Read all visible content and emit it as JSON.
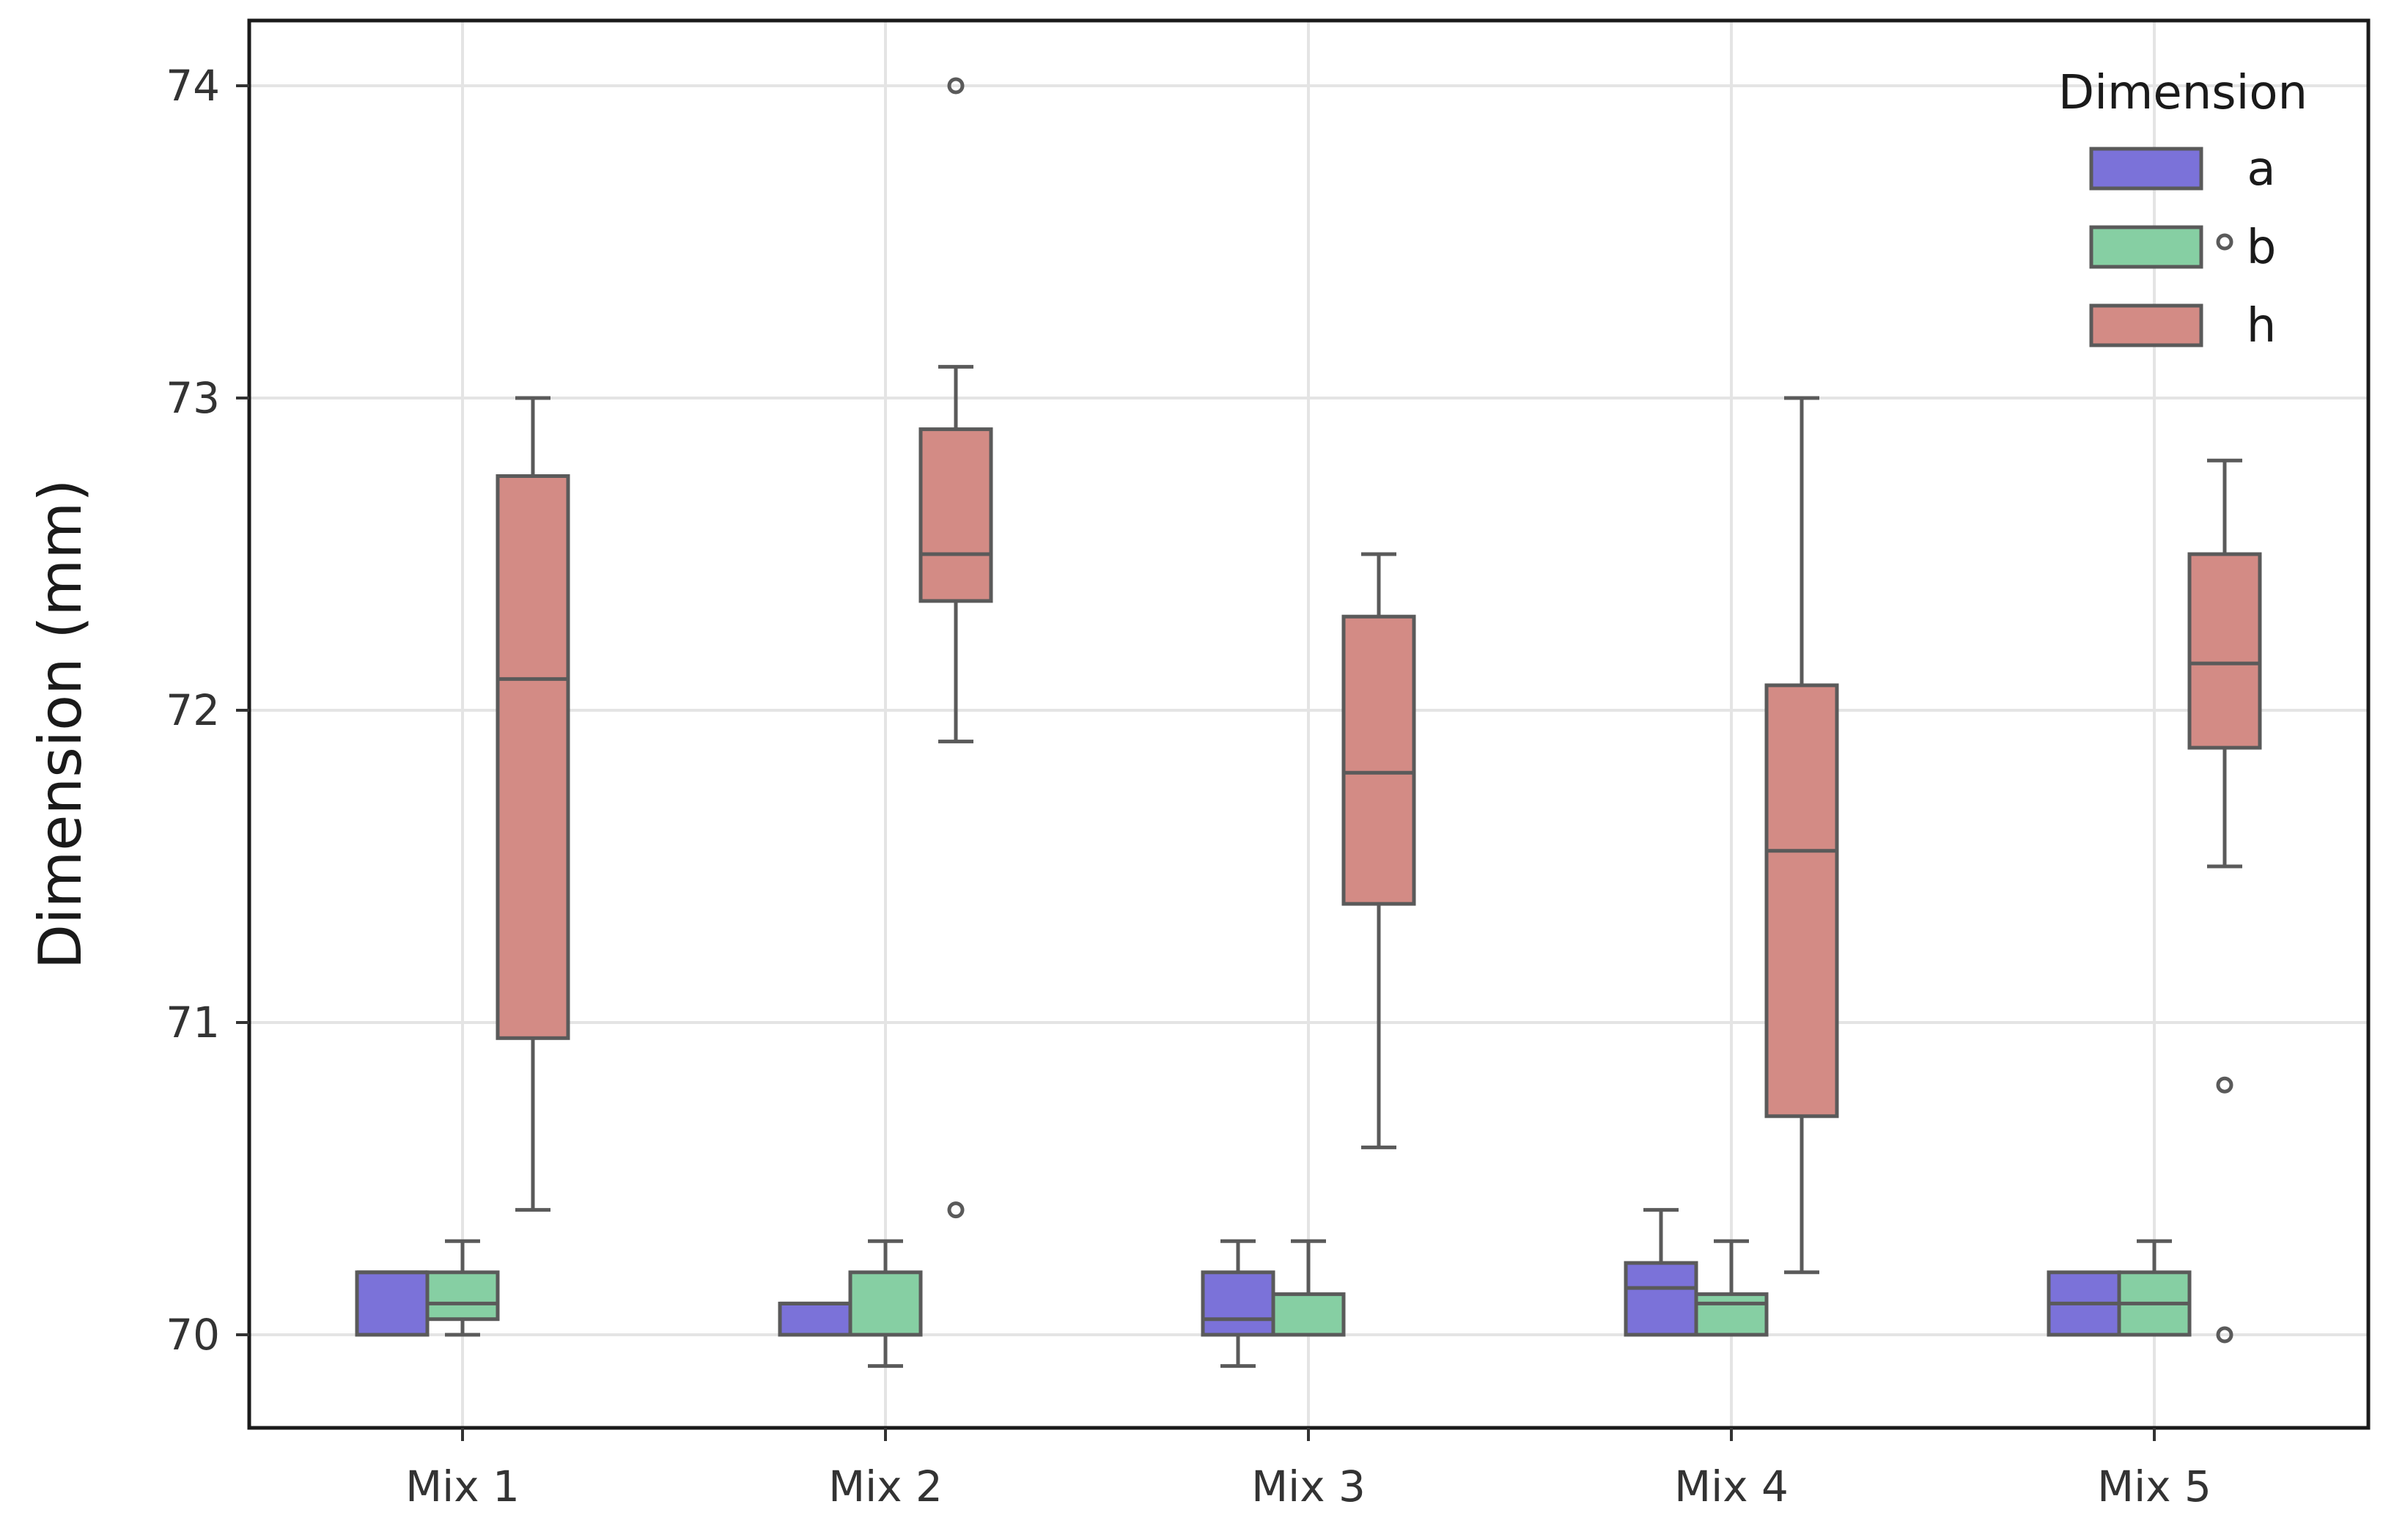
{
  "chart_data": {
    "type": "box",
    "title": "",
    "xlabel": "",
    "ylabel": "Dimension (mm)",
    "ylim": [
      69.7,
      74.2
    ],
    "yticks": [
      70,
      71,
      72,
      73,
      74
    ],
    "grid": true,
    "categories": [
      "Mix 1",
      "Mix 2",
      "Mix 3",
      "Mix 4",
      "Mix 5"
    ],
    "legend": {
      "title": "Dimension",
      "position": "top-right"
    },
    "series": [
      {
        "name": "a",
        "color": "#7b72d9",
        "boxes": [
          {
            "whislo": 70.0,
            "q1": 70.0,
            "med": 70.2,
            "q3": 70.2,
            "whishi": 70.2,
            "fliers": []
          },
          {
            "whislo": 70.0,
            "q1": 70.0,
            "med": 70.1,
            "q3": 70.1,
            "whishi": 70.1,
            "fliers": []
          },
          {
            "whislo": 69.9,
            "q1": 70.0,
            "med": 70.05,
            "q3": 70.2,
            "whishi": 70.3,
            "fliers": []
          },
          {
            "whislo": 70.0,
            "q1": 70.0,
            "med": 70.15,
            "q3": 70.23,
            "whishi": 70.4,
            "fliers": []
          },
          {
            "whislo": 70.0,
            "q1": 70.0,
            "med": 70.1,
            "q3": 70.2,
            "whishi": 70.2,
            "fliers": []
          }
        ]
      },
      {
        "name": "b",
        "color": "#86cfa3",
        "boxes": [
          {
            "whislo": 70.0,
            "q1": 70.05,
            "med": 70.1,
            "q3": 70.2,
            "whishi": 70.3,
            "fliers": []
          },
          {
            "whislo": 69.9,
            "q1": 70.0,
            "med": 70.0,
            "q3": 70.2,
            "whishi": 70.3,
            "fliers": []
          },
          {
            "whislo": 70.0,
            "q1": 70.0,
            "med": 70.0,
            "q3": 70.13,
            "whishi": 70.3,
            "fliers": []
          },
          {
            "whislo": 70.0,
            "q1": 70.0,
            "med": 70.1,
            "q3": 70.13,
            "whishi": 70.3,
            "fliers": []
          },
          {
            "whislo": 70.0,
            "q1": 70.0,
            "med": 70.1,
            "q3": 70.2,
            "whishi": 70.3,
            "fliers": []
          }
        ]
      },
      {
        "name": "h",
        "color": "#d38b85",
        "boxes": [
          {
            "whislo": 70.4,
            "q1": 70.95,
            "med": 72.1,
            "q3": 72.75,
            "whishi": 73.0,
            "fliers": []
          },
          {
            "whislo": 71.9,
            "q1": 72.35,
            "med": 72.5,
            "q3": 72.9,
            "whishi": 73.1,
            "fliers": [
              74.0,
              70.4
            ]
          },
          {
            "whislo": 70.6,
            "q1": 71.38,
            "med": 71.8,
            "q3": 72.3,
            "whishi": 72.5,
            "fliers": []
          },
          {
            "whislo": 70.2,
            "q1": 70.7,
            "med": 71.55,
            "q3": 72.08,
            "whishi": 73.0,
            "fliers": []
          },
          {
            "whislo": 71.5,
            "q1": 71.88,
            "med": 72.15,
            "q3": 72.5,
            "whishi": 72.8,
            "fliers": [
              73.5,
              70.8,
              70.0
            ]
          }
        ]
      }
    ]
  }
}
